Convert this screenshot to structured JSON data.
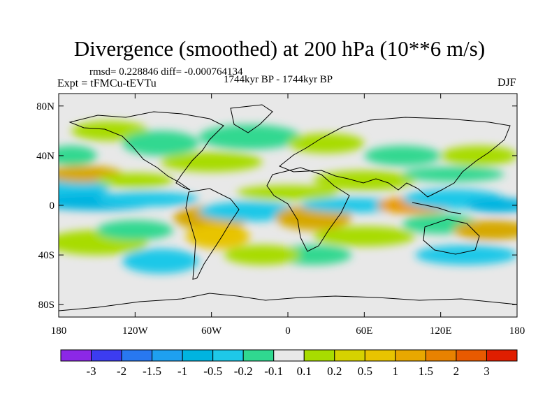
{
  "title": "Divergence (smoothed) at 200 hPa (10**6 m/s)",
  "stats": {
    "rmsd_line": "rmsd= 0.228846 diff= -0.000764134"
  },
  "experiment": "Expt = tFMCu-tEVTu",
  "period": "1744kyr BP - 1744kyr BP",
  "season": "DJF",
  "map": {
    "projection": "cylindrical equidistant",
    "lon_range": [
      -180,
      180
    ],
    "lat_range": [
      -90,
      90
    ],
    "lat_ticks": [
      {
        "value": 80,
        "label": "80N"
      },
      {
        "value": 40,
        "label": "40N"
      },
      {
        "value": 0,
        "label": "0"
      },
      {
        "value": -40,
        "label": "40S"
      },
      {
        "value": -80,
        "label": "80S"
      }
    ],
    "lon_ticks": [
      {
        "value": -180,
        "label": "180"
      },
      {
        "value": -120,
        "label": "120W"
      },
      {
        "value": -60,
        "label": "60W"
      },
      {
        "value": 0,
        "label": "0"
      },
      {
        "value": 60,
        "label": "60E"
      },
      {
        "value": 120,
        "label": "120E"
      },
      {
        "value": 180,
        "label": "180"
      }
    ],
    "background_color": "#e8e8e8",
    "field_blobs": [
      {
        "lon": -170,
        "lat": 15,
        "wlon": 30,
        "wlat": 8,
        "color": "#1ec8e8"
      },
      {
        "lon": -150,
        "lat": 3,
        "wlon": 50,
        "wlat": 7,
        "color": "#00b4e0"
      },
      {
        "lon": -110,
        "lat": 5,
        "wlon": 40,
        "wlat": 6,
        "color": "#1ec8e8"
      },
      {
        "lon": -160,
        "lat": 25,
        "wlon": 30,
        "wlat": 7,
        "color": "#d6a800"
      },
      {
        "lon": -120,
        "lat": 20,
        "wlon": 30,
        "wlat": 6,
        "color": "#a8dc00"
      },
      {
        "lon": -170,
        "lat": 40,
        "wlon": 20,
        "wlat": 8,
        "color": "#30d890"
      },
      {
        "lon": -140,
        "lat": 60,
        "wlon": 30,
        "wlat": 8,
        "color": "#a8dc00"
      },
      {
        "lon": -100,
        "lat": 50,
        "wlon": 30,
        "wlat": 10,
        "color": "#30d890"
      },
      {
        "lon": -60,
        "lat": 35,
        "wlon": 40,
        "wlat": 8,
        "color": "#a8dc00"
      },
      {
        "lon": -30,
        "lat": 55,
        "wlon": 40,
        "wlat": 10,
        "color": "#30d890"
      },
      {
        "lon": -60,
        "lat": -10,
        "wlon": 30,
        "wlat": 10,
        "color": "#d6a800"
      },
      {
        "lon": -55,
        "lat": -25,
        "wlon": 25,
        "wlat": 10,
        "color": "#e8c400"
      },
      {
        "lon": -30,
        "lat": -5,
        "wlon": 40,
        "wlat": 8,
        "color": "#1ec8e8"
      },
      {
        "lon": 0,
        "lat": 10,
        "wlon": 40,
        "wlat": 6,
        "color": "#a8dc00"
      },
      {
        "lon": 20,
        "lat": -10,
        "wlon": 30,
        "wlat": 10,
        "color": "#d6a800"
      },
      {
        "lon": 50,
        "lat": 0,
        "wlon": 40,
        "wlat": 6,
        "color": "#1ec8e8"
      },
      {
        "lon": 60,
        "lat": 20,
        "wlon": 40,
        "wlat": 8,
        "color": "#a8dc00"
      },
      {
        "lon": 100,
        "lat": 0,
        "wlon": 30,
        "wlat": 7,
        "color": "#e89a00"
      },
      {
        "lon": 130,
        "lat": 5,
        "wlon": 40,
        "wlat": 8,
        "color": "#1ec8e8"
      },
      {
        "lon": 165,
        "lat": 0,
        "wlon": 25,
        "wlat": 6,
        "color": "#00b4e0"
      },
      {
        "lon": 130,
        "lat": 25,
        "wlon": 40,
        "wlat": 6,
        "color": "#30d890"
      },
      {
        "lon": 150,
        "lat": 40,
        "wlon": 30,
        "wlat": 8,
        "color": "#a8dc00"
      },
      {
        "lon": 90,
        "lat": 40,
        "wlon": 30,
        "wlat": 8,
        "color": "#30d890"
      },
      {
        "lon": 30,
        "lat": 50,
        "wlon": 30,
        "wlat": 8,
        "color": "#a8dc00"
      },
      {
        "lon": 120,
        "lat": -15,
        "wlon": 30,
        "wlat": 8,
        "color": "#30d890"
      },
      {
        "lon": 60,
        "lat": -25,
        "wlon": 40,
        "wlat": 8,
        "color": "#a8dc00"
      },
      {
        "lon": 20,
        "lat": -40,
        "wlon": 30,
        "wlat": 8,
        "color": "#30d890"
      },
      {
        "lon": -150,
        "lat": -30,
        "wlon": 40,
        "wlat": 10,
        "color": "#a8dc00"
      },
      {
        "lon": -120,
        "lat": -20,
        "wlon": 30,
        "wlat": 8,
        "color": "#30d890"
      },
      {
        "lon": -100,
        "lat": -45,
        "wlon": 30,
        "wlat": 10,
        "color": "#1ec8e8"
      },
      {
        "lon": -20,
        "lat": -40,
        "wlon": 30,
        "wlat": 8,
        "color": "#a8dc00"
      },
      {
        "lon": 140,
        "lat": -40,
        "wlon": 40,
        "wlat": 8,
        "color": "#1ec8e8"
      },
      {
        "lon": 160,
        "lat": -20,
        "wlon": 30,
        "wlat": 8,
        "color": "#d6a800"
      }
    ]
  },
  "colorbar": {
    "colors": [
      "#8c28e6",
      "#3c3cf0",
      "#2878f0",
      "#1ea0f0",
      "#00b4e0",
      "#1ec8e8",
      "#30d890",
      "#e8e8e8",
      "#a8dc00",
      "#d6d200",
      "#e8c400",
      "#e8a800",
      "#e88200",
      "#e85a00",
      "#e01e00"
    ],
    "labels": [
      "-3",
      "-2",
      "-1.5",
      "-1",
      "-0.5",
      "-0.2",
      "-0.1",
      "0.1",
      "0.2",
      "0.5",
      "1",
      "1.5",
      "2",
      "3"
    ]
  }
}
